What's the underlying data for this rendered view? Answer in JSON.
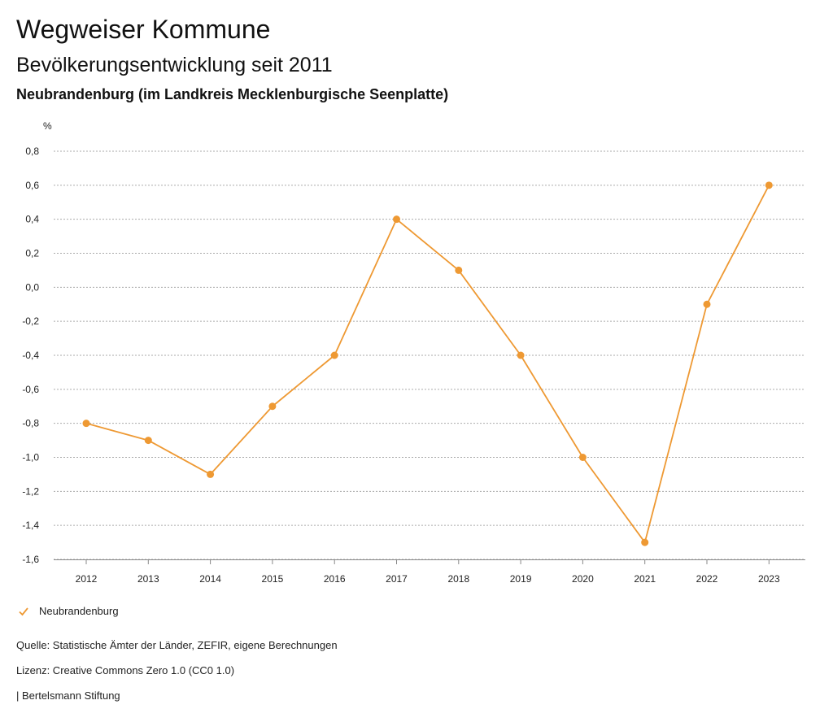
{
  "header": {
    "title": "Wegweiser Kommune",
    "subtitle": "Bevölkerungsentwicklung seit 2011"
  },
  "chart_data": {
    "type": "line",
    "title": "Neubrandenburg (im Landkreis Mecklenburgische Seenplatte)",
    "xlabel": "",
    "ylabel": "%",
    "categories": [
      "2012",
      "2013",
      "2014",
      "2015",
      "2016",
      "2017",
      "2018",
      "2019",
      "2020",
      "2021",
      "2022",
      "2023"
    ],
    "series": [
      {
        "name": "Neubrandenburg",
        "color": "#ee9933",
        "values": [
          -0.8,
          -0.9,
          -1.1,
          -0.7,
          -0.4,
          0.4,
          0.1,
          -0.4,
          -1.0,
          -1.5,
          -0.1,
          0.6
        ]
      }
    ],
    "ylim": [
      -1.6,
      0.8
    ],
    "yticks": [
      0.8,
      0.6,
      0.4,
      0.2,
      0.0,
      -0.2,
      -0.4,
      -0.6,
      -0.8,
      -1.0,
      -1.2,
      -1.4,
      -1.6
    ],
    "ytick_labels": [
      "0,8",
      "0,6",
      "0,4",
      "0,2",
      "0,0",
      "-0,2",
      "-0,4",
      "-0,6",
      "-0,8",
      "-1,0",
      "-1,2",
      "-1,4",
      "-1,6"
    ],
    "grid": true,
    "legend": "bottom-left"
  },
  "footer": {
    "source": "Quelle: Statistische Ämter der Länder, ZEFIR, eigene Berechnungen",
    "license": "Lizenz: Creative Commons Zero 1.0 (CC0 1.0)",
    "publisher": "| Bertelsmann Stiftung"
  },
  "colors": {
    "series": "#ee9933",
    "grid": "#aaaaaa",
    "axis": "#888888"
  }
}
